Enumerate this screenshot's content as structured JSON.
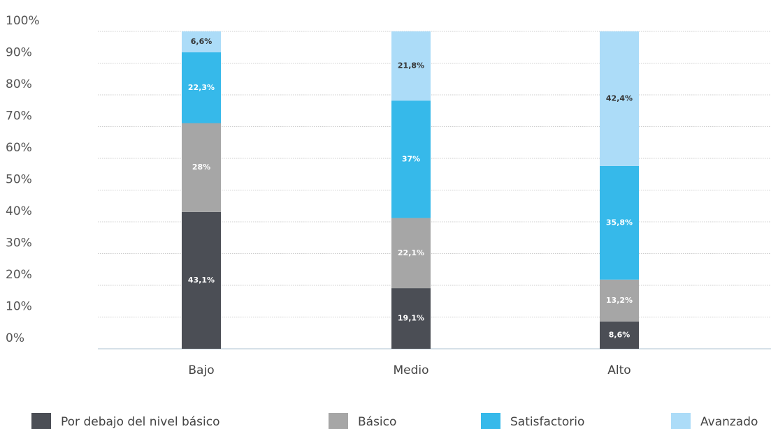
{
  "chart_data": {
    "type": "stacked_bar",
    "categories": [
      "Bajo",
      "Medio",
      "Alto"
    ],
    "series": [
      {
        "name": "Por debajo del nivel básico",
        "color": "#4b4e55",
        "values": [
          43.1,
          19.1,
          8.6
        ],
        "value_labels": [
          "43,1%",
          "19,1%",
          "8,6%"
        ]
      },
      {
        "name": "Básico",
        "color": "#a6a6a6",
        "values": [
          28,
          22.1,
          13.2
        ],
        "value_labels": [
          "28%",
          "22,1%",
          "13,2%"
        ]
      },
      {
        "name": "Satisfactorio",
        "color": "#36b9ea",
        "values": [
          22.3,
          37,
          35.8
        ],
        "value_labels": [
          "22,3%",
          "37%",
          "35,8%"
        ]
      },
      {
        "name": "Avanzado",
        "color": "#acdcf8",
        "values": [
          6.6,
          21.8,
          42.4
        ],
        "value_labels": [
          "6,6%",
          "21,8%",
          "42,4%"
        ]
      }
    ],
    "ylim": [
      0,
      100
    ],
    "yticks": [
      {
        "value": 0,
        "label": "0%"
      },
      {
        "value": 10,
        "label": "10%"
      },
      {
        "value": 20,
        "label": "20%"
      },
      {
        "value": 30,
        "label": "30%"
      },
      {
        "value": 40,
        "label": "40%"
      },
      {
        "value": 50,
        "label": "50%"
      },
      {
        "value": 60,
        "label": "60%"
      },
      {
        "value": 70,
        "label": "70%"
      },
      {
        "value": 80,
        "label": "80%"
      },
      {
        "value": 90,
        "label": "90%"
      },
      {
        "value": 100,
        "label": "100%"
      }
    ],
    "grid": true
  }
}
